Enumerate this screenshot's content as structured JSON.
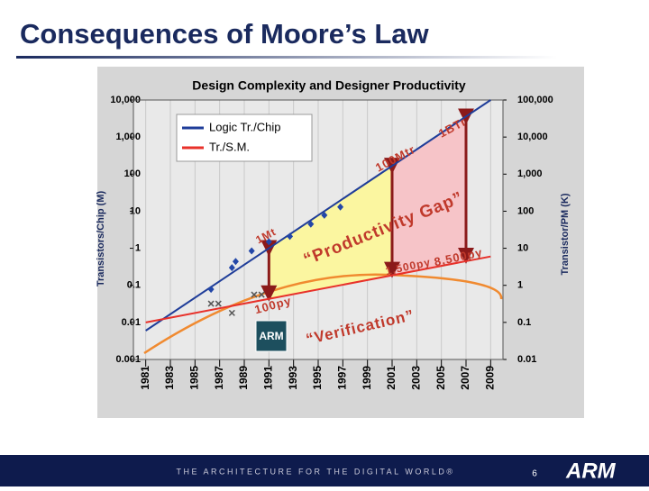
{
  "slide": {
    "title": "Consequences of Moore’s Law",
    "footer": "THE ARCHITECTURE FOR THE DIGITAL WORLD®",
    "page": "6",
    "logo": "ARM"
  },
  "chart_data": {
    "type": "line",
    "title": "Design Complexity and Designer Productivity",
    "y_label": "Transistors/Chip (M)",
    "y2_label": "Transistor/PM (K)",
    "log_scale": true,
    "grid": true,
    "legend": "upper-left",
    "x": [
      1981,
      2009
    ],
    "series": [
      {
        "name": "Logic Tr./Chip",
        "color": "#1f3d99",
        "values": [
          0.006,
          10000
        ]
      },
      {
        "name": "Tr./S.M.",
        "color": "#e8312a",
        "axis": "y2",
        "values": [
          0.1,
          6
        ]
      }
    ],
    "markers": [
      {
        "shape": "diamond",
        "color": "#2347a8",
        "x": [
          1986.3,
          1988,
          1988.3,
          1989.6,
          1991,
          1992.7,
          1994.4,
          1995.5,
          1996.8
        ],
        "y": [
          0.078,
          0.3,
          0.44,
          0.85,
          1.5,
          2.1,
          4.5,
          7.8,
          13
        ]
      },
      {
        "shape": "x",
        "color": "#555555",
        "x": [
          1986.3,
          1986.9,
          1988,
          1989.8,
          1990.4
        ],
        "y": [
          0.032,
          0.032,
          0.018,
          0.056,
          0.056
        ]
      }
    ],
    "gaps": [
      {
        "color": "#fbf6a0",
        "span": [
          1991,
          2001
        ]
      },
      {
        "color": "#f6c4c8",
        "span": [
          2001,
          2007
        ]
      }
    ],
    "annotations": [
      "1Mt",
      "100Mtr",
      "1BTr",
      "100py",
      "1,500py",
      "8,500py",
      "“Productivity Gap”",
      "“Verification”"
    ],
    "badge": "ARM",
    "xlim": [
      1980,
      2010
    ],
    "xticks": [
      1981,
      1983,
      1985,
      1987,
      1989,
      1991,
      1993,
      1995,
      1997,
      1999,
      2001,
      2003,
      2005,
      2007,
      2009
    ],
    "ylim": [
      0.001,
      10000
    ],
    "yticks": [
      0.001,
      0.01,
      0.1,
      1,
      10,
      100,
      {
        "value": 1000,
        "label": "1,000"
      },
      {
        "value": 10000,
        "label": "10,000"
      }
    ],
    "y2lim": [
      0.01,
      100000
    ],
    "y2ticks": [
      0.01,
      0.1,
      1,
      10,
      100,
      {
        "value": 1000,
        "label": "1,000"
      },
      {
        "value": 10000,
        "label": "10,000"
      },
      {
        "value": 100000,
        "label": "100,000"
      }
    ]
  }
}
